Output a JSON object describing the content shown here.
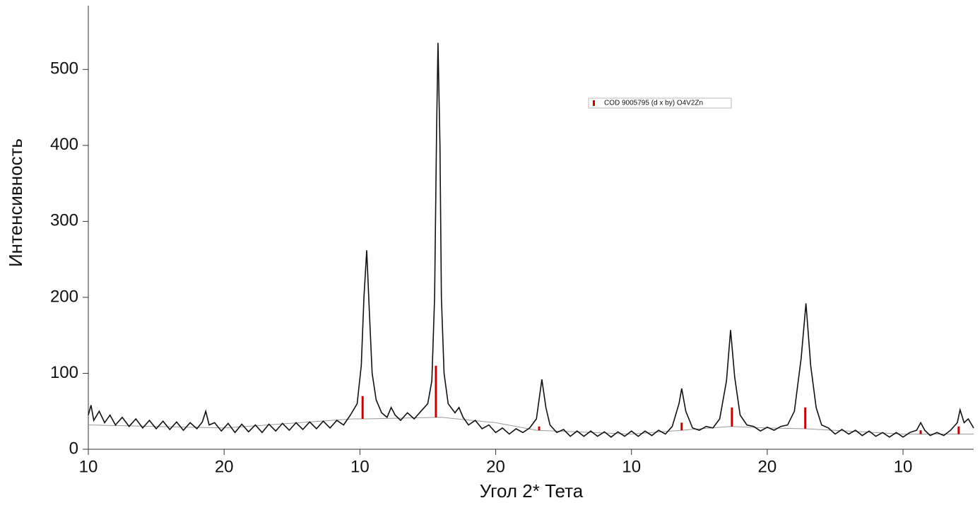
{
  "chart_data": {
    "type": "line",
    "x_label": "Угол 2* Тета",
    "y_label": "Интенсивность",
    "xlim": [
      0,
      6.52
    ],
    "ylim": [
      0,
      584
    ],
    "xticks": [
      {
        "value": 0,
        "label": "10"
      },
      {
        "value": 1,
        "label": "20"
      },
      {
        "value": 2,
        "label": "10"
      },
      {
        "value": 3,
        "label": "20"
      },
      {
        "value": 4,
        "label": "10"
      },
      {
        "value": 5,
        "label": "20"
      },
      {
        "value": 6,
        "label": "10"
      }
    ],
    "yticks": [
      0,
      100,
      200,
      300,
      400,
      500
    ],
    "series": [
      {
        "color": "#111111",
        "x": [
          0,
          0.02,
          0.04,
          0.08,
          0.12,
          0.16,
          0.2,
          0.25,
          0.3,
          0.35,
          0.4,
          0.45,
          0.5,
          0.55,
          0.6,
          0.65,
          0.7,
          0.75,
          0.8,
          0.84,
          0.865,
          0.89,
          0.93,
          0.98,
          1.03,
          1.08,
          1.13,
          1.18,
          1.23,
          1.28,
          1.33,
          1.38,
          1.43,
          1.48,
          1.53,
          1.58,
          1.63,
          1.68,
          1.73,
          1.78,
          1.83,
          1.88,
          1.93,
          1.98,
          2.01,
          2.03,
          2.05,
          2.07,
          2.09,
          2.12,
          2.16,
          2.2,
          2.23,
          2.26,
          2.3,
          2.35,
          2.4,
          2.45,
          2.5,
          2.53,
          2.55,
          2.565,
          2.575,
          2.59,
          2.6,
          2.62,
          2.65,
          2.7,
          2.73,
          2.76,
          2.8,
          2.85,
          2.9,
          2.95,
          3.0,
          3.05,
          3.1,
          3.15,
          3.2,
          3.25,
          3.3,
          3.34,
          3.37,
          3.4,
          3.45,
          3.5,
          3.55,
          3.6,
          3.65,
          3.7,
          3.75,
          3.8,
          3.85,
          3.9,
          3.95,
          4.0,
          4.05,
          4.1,
          4.15,
          4.2,
          4.25,
          4.3,
          4.35,
          4.37,
          4.4,
          4.45,
          4.5,
          4.55,
          4.6,
          4.65,
          4.7,
          4.73,
          4.76,
          4.8,
          4.85,
          4.9,
          4.95,
          5.0,
          5.05,
          5.1,
          5.15,
          5.2,
          5.25,
          5.285,
          5.32,
          5.36,
          5.4,
          5.45,
          5.5,
          5.55,
          5.6,
          5.65,
          5.7,
          5.75,
          5.8,
          5.85,
          5.9,
          5.95,
          6.0,
          6.05,
          6.1,
          6.13,
          6.16,
          6.2,
          6.25,
          6.3,
          6.35,
          6.4,
          6.42,
          6.45,
          6.48,
          6.52
        ],
        "values": [
          45,
          58,
          38,
          50,
          35,
          45,
          32,
          42,
          30,
          40,
          28,
          38,
          27,
          37,
          26,
          36,
          25,
          35,
          27,
          36,
          50,
          32,
          35,
          24,
          34,
          22,
          33,
          23,
          32,
          22,
          33,
          24,
          34,
          25,
          35,
          26,
          36,
          27,
          37,
          28,
          38,
          32,
          45,
          60,
          110,
          200,
          262,
          180,
          100,
          65,
          48,
          42,
          55,
          45,
          38,
          48,
          40,
          50,
          60,
          90,
          200,
          420,
          535,
          400,
          200,
          100,
          60,
          48,
          55,
          42,
          32,
          38,
          27,
          32,
          22,
          28,
          20,
          27,
          22,
          28,
          40,
          92,
          55,
          32,
          22,
          26,
          17,
          24,
          17,
          24,
          17,
          23,
          16,
          23,
          17,
          24,
          17,
          24,
          18,
          25,
          20,
          30,
          60,
          80,
          50,
          28,
          25,
          30,
          28,
          40,
          90,
          157,
          95,
          45,
          32,
          30,
          24,
          29,
          25,
          30,
          32,
          50,
          120,
          192,
          110,
          55,
          32,
          28,
          20,
          26,
          20,
          25,
          18,
          24,
          17,
          22,
          16,
          22,
          16,
          22,
          25,
          35,
          25,
          18,
          22,
          18,
          25,
          35,
          52,
          35,
          40,
          28
        ]
      },
      {
        "color": "#999999",
        "x": [
          0,
          1,
          1.95,
          2.05,
          2.6,
          3.0,
          3.3,
          4.0,
          4.37,
          4.73,
          5.0,
          5.28,
          6.0,
          6.52
        ],
        "values": [
          32,
          28,
          40,
          40,
          42,
          35,
          25,
          20,
          25,
          30,
          28,
          27,
          20,
          20
        ]
      },
      {
        "name": "COD 9005795 (d x by) O4V2Zn",
        "color": "#c00000",
        "x": [
          2.02,
          2.56,
          3.32,
          4.37,
          4.74,
          5.28,
          6.13,
          6.41
        ],
        "values": [
          70,
          110,
          30,
          35,
          55,
          55,
          25,
          30
        ]
      }
    ]
  }
}
